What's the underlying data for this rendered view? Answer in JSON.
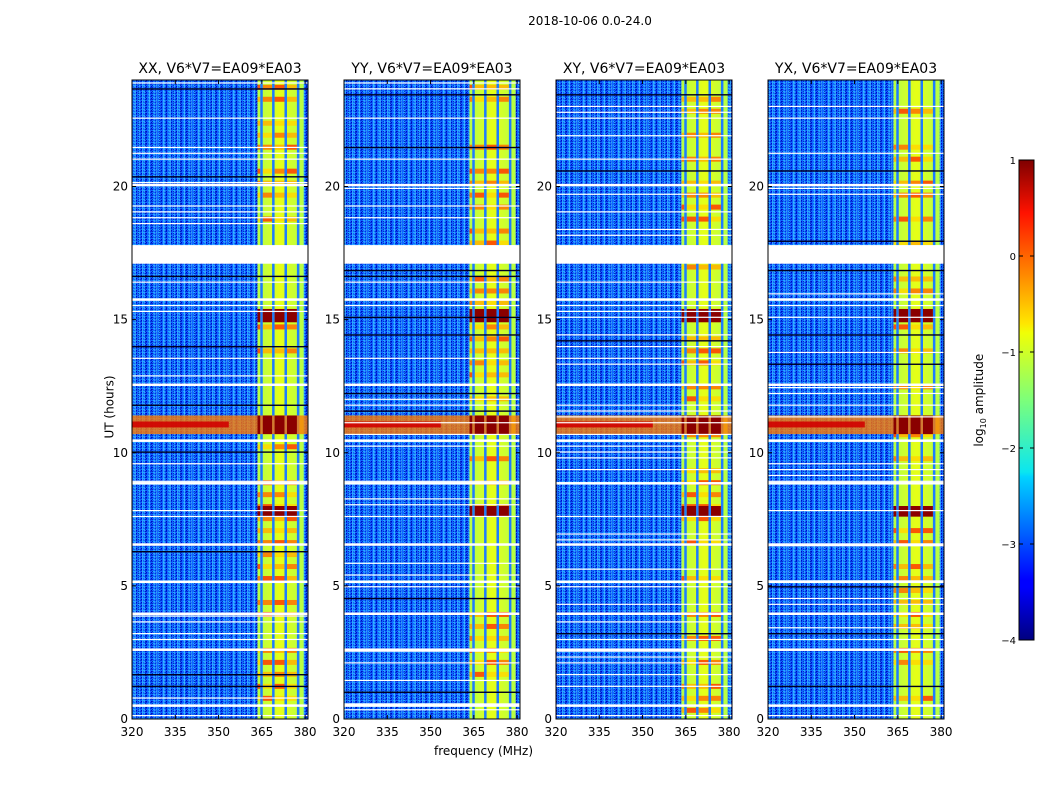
{
  "chart_data": {
    "type": "heatmap",
    "suptitle": "2018-10-06 0.0-24.0",
    "xlabel": "frequency (MHz)",
    "ylabel": "UT (hours)",
    "xlim": [
      320,
      381
    ],
    "ylim": [
      0,
      24
    ],
    "xticks": [
      320,
      335,
      350,
      365,
      380
    ],
    "yticks": [
      0,
      5,
      10,
      15,
      20
    ],
    "rfi_band_MHz": [
      363.5,
      379.5
    ],
    "channel_gaps_MHz": [
      364.8,
      368.9,
      373.2,
      377.5
    ],
    "data_gap_UT": [
      17.5,
      17.2
    ],
    "strong_rfi_UT": [
      [
        10.7,
        11.4
      ],
      [
        7.6,
        8.0
      ],
      [
        14.9,
        15.4
      ]
    ],
    "panels": [
      {
        "title": "XX, V6*V7=EA09*EA03"
      },
      {
        "title": "YY, V6*V7=EA09*EA03"
      },
      {
        "title": "XY, V6*V7=EA09*EA03"
      },
      {
        "title": "YX, V6*V7=EA09*EA03"
      }
    ],
    "colorbar": {
      "label_prefix": "log",
      "label_sub": "10",
      "label_suffix": " amplitude",
      "range": [
        -4,
        1
      ],
      "ticks": [
        -4,
        -3,
        -2,
        -1,
        0,
        1
      ],
      "tick_labels": [
        "−4",
        "−3",
        "−2",
        "−1",
        "0",
        "1"
      ],
      "colormap": "jet"
    }
  }
}
